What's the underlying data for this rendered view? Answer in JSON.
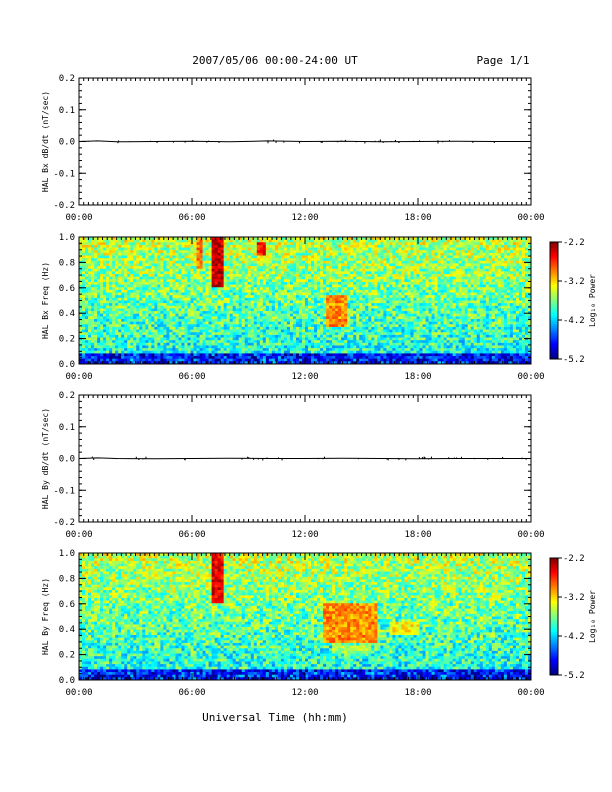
{
  "header": {
    "title": "2007/05/06  00:00-24:00 UT",
    "page": "Page 1/1"
  },
  "xlabel": "Universal Time (hh:mm)",
  "chart_data": [
    {
      "type": "line",
      "ylabel": "HAL Bx dB/dt (nT/sec)",
      "ylim": [
        -0.2,
        0.2
      ],
      "yticks": [
        "0.2",
        "0.1",
        "0.0",
        "-0.1",
        "-0.2"
      ],
      "yticks_values": [
        0.2,
        0.1,
        0.0,
        -0.1,
        -0.2
      ],
      "xlim_hours": [
        0,
        24
      ],
      "xticks": [
        "00:00",
        "06:00",
        "12:00",
        "18:00",
        "00:00"
      ],
      "series": [
        {
          "x": [
            0,
            1,
            2,
            4,
            6,
            8,
            10,
            12,
            14,
            16,
            18,
            20,
            22,
            24
          ],
          "values": [
            0,
            0.002,
            -0.001,
            0,
            0.001,
            -0.001,
            0.002,
            0,
            0.001,
            -0.001,
            0,
            0.001,
            0,
            0
          ]
        }
      ]
    },
    {
      "type": "heatmap",
      "ylabel": "HAL Bx Freq (Hz)",
      "ylim": [
        0,
        1.0
      ],
      "yticks": [
        "1.0",
        "0.8",
        "0.6",
        "0.4",
        "0.2",
        "0.0"
      ],
      "yticks_values": [
        1.0,
        0.8,
        0.6,
        0.4,
        0.2,
        0.0
      ],
      "xlim_hours": [
        0,
        24
      ],
      "xticks": [
        "00:00",
        "06:00",
        "12:00",
        "18:00",
        "00:00"
      ],
      "colorbar": {
        "label": "Log₁₀ Power",
        "range": [
          -5.2,
          -2.2
        ],
        "ticks": [
          "-2.2",
          "-3.2",
          "-4.2",
          "-5.2"
        ],
        "tick_values": [
          -2.2,
          -3.2,
          -4.2,
          -5.2
        ]
      },
      "features": [
        {
          "t": [
            7.1,
            7.6
          ],
          "f": [
            0.6,
            1.0
          ],
          "power": -2.4
        },
        {
          "t": [
            6.2,
            6.5
          ],
          "f": [
            0.75,
            1.0
          ],
          "power": -2.9
        },
        {
          "t": [
            9.5,
            9.9
          ],
          "f": [
            0.85,
            0.95
          ],
          "power": -2.6
        },
        {
          "t": [
            13.2,
            14.2
          ],
          "f": [
            0.3,
            0.55
          ],
          "power": -3.0
        }
      ]
    },
    {
      "type": "line",
      "ylabel": "HAL By dB/dt (nT/sec)",
      "ylim": [
        -0.2,
        0.2
      ],
      "yticks": [
        "0.2",
        "0.1",
        "0.0",
        "-0.1",
        "-0.2"
      ],
      "yticks_values": [
        0.2,
        0.1,
        0.0,
        -0.1,
        -0.2
      ],
      "xlim_hours": [
        0,
        24
      ],
      "xticks": [
        "00:00",
        "06:00",
        "12:00",
        "18:00",
        "00:00"
      ],
      "series": [
        {
          "x": [
            0,
            1,
            2,
            4,
            6,
            8,
            10,
            12,
            14,
            16,
            18,
            20,
            22,
            24
          ],
          "values": [
            0,
            0.002,
            0,
            -0.001,
            0,
            0.001,
            0,
            0,
            0.001,
            0,
            -0.001,
            0,
            0,
            0
          ]
        }
      ]
    },
    {
      "type": "heatmap",
      "ylabel": "HAL By Freq (Hz)",
      "ylim": [
        0,
        1.0
      ],
      "yticks": [
        "1.0",
        "0.8",
        "0.6",
        "0.4",
        "0.2",
        "0.0"
      ],
      "yticks_values": [
        1.0,
        0.8,
        0.6,
        0.4,
        0.2,
        0.0
      ],
      "xlim_hours": [
        0,
        24
      ],
      "xticks": [
        "00:00",
        "06:00",
        "12:00",
        "18:00",
        "00:00"
      ],
      "colorbar": {
        "label": "Log₁₀ Power",
        "range": [
          -5.2,
          -2.2
        ],
        "ticks": [
          "-2.2",
          "-3.2",
          "-4.2",
          "-5.2"
        ],
        "tick_values": [
          -2.2,
          -3.2,
          -4.2,
          -5.2
        ]
      },
      "features": [
        {
          "t": [
            7.1,
            7.6
          ],
          "f": [
            0.6,
            1.0
          ],
          "power": -2.5
        },
        {
          "t": [
            13.0,
            15.8
          ],
          "f": [
            0.3,
            0.6
          ],
          "power": -3.0
        },
        {
          "t": [
            16.5,
            18.0
          ],
          "f": [
            0.35,
            0.45
          ],
          "power": -3.3
        },
        {
          "t": [
            13.5,
            15.5
          ],
          "f": [
            0.2,
            0.28
          ],
          "power": -3.6
        }
      ]
    }
  ]
}
